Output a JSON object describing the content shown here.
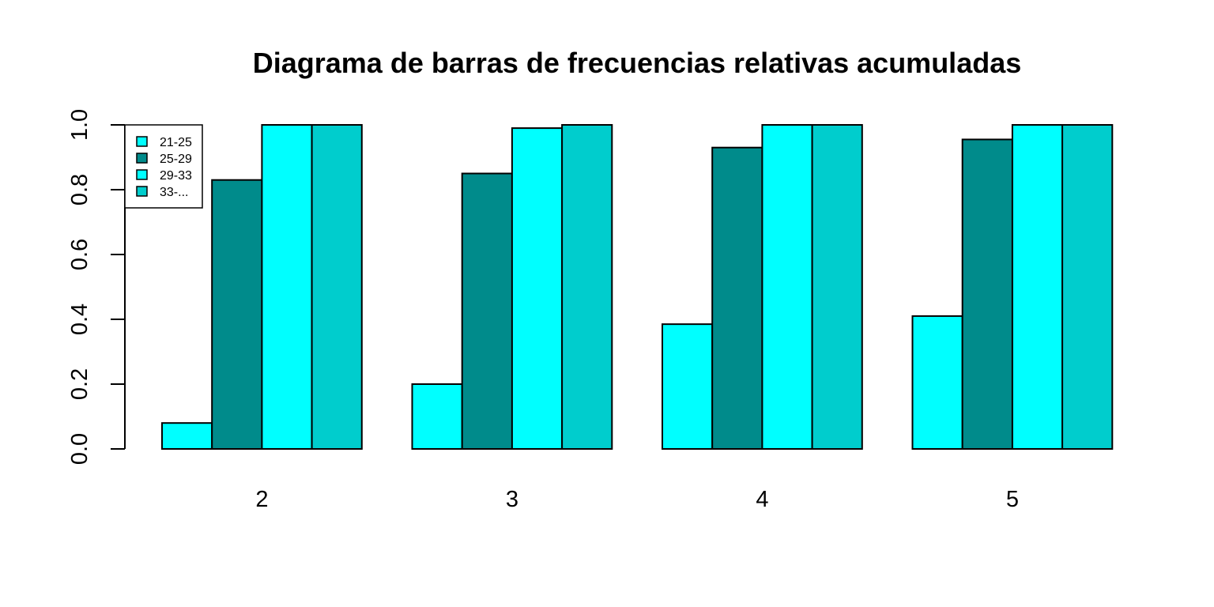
{
  "chart_data": {
    "type": "bar",
    "title": "Diagrama de barras de frecuencias relativas acumuladas",
    "xlabel": "",
    "ylabel": "",
    "categories": [
      "2",
      "3",
      "4",
      "5"
    ],
    "series": [
      {
        "name": "21-25",
        "color": "#00FFFF",
        "values": [
          0.08,
          0.2,
          0.385,
          0.41
        ]
      },
      {
        "name": "25-29",
        "color": "#008B8B",
        "values": [
          0.83,
          0.85,
          0.93,
          0.955
        ]
      },
      {
        "name": "29-33",
        "color": "#00FFFF",
        "values": [
          1.0,
          0.99,
          1.0,
          1.0
        ]
      },
      {
        "name": "33-...",
        "color": "#00CDCD",
        "values": [
          1.0,
          1.0,
          1.0,
          1.0
        ]
      }
    ],
    "ylim": [
      0,
      1
    ],
    "yticks": [
      "0.0",
      "0.2",
      "0.4",
      "0.6",
      "0.8",
      "1.0"
    ],
    "legend_position": "top-left",
    "grid": false
  }
}
